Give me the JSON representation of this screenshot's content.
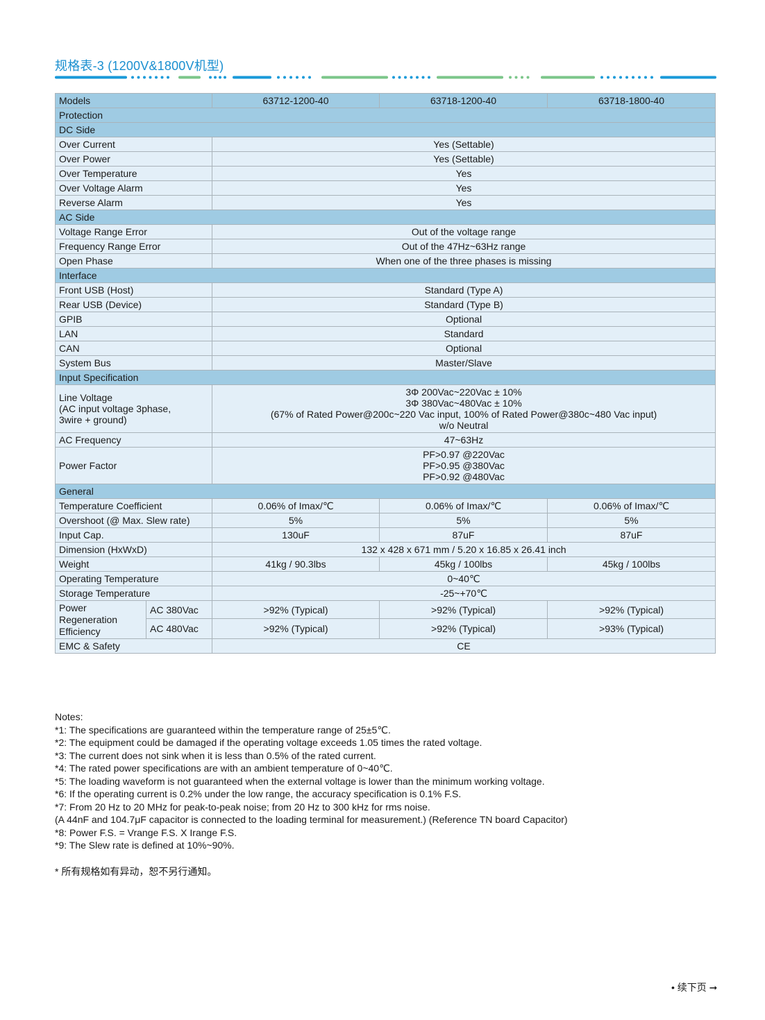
{
  "title": "规格表-3 (1200V&1800V机型)",
  "colors": {
    "accent_blue": "#1a9ad9",
    "accent_green": "#7cc68a",
    "section_bg": "#9fcbe3",
    "row_bg": "#e3eff8"
  },
  "models": {
    "label": "Models",
    "values": [
      "63712-1200-40",
      "63718-1200-40",
      "63718-1800-40"
    ]
  },
  "rows": [
    {
      "type": "section",
      "label": "Protection"
    },
    {
      "type": "section",
      "label": "DC Side"
    },
    {
      "type": "span",
      "label": "Over Current",
      "value": [
        "Yes (Settable)"
      ]
    },
    {
      "type": "span",
      "label": "Over Power",
      "value": [
        "Yes (Settable)"
      ]
    },
    {
      "type": "span",
      "label": "Over Temperature",
      "value": [
        "Yes"
      ]
    },
    {
      "type": "span",
      "label": "Over Voltage Alarm",
      "value": [
        "Yes"
      ]
    },
    {
      "type": "span",
      "label": "Reverse Alarm",
      "value": [
        "Yes"
      ]
    },
    {
      "type": "section",
      "label": "AC Side"
    },
    {
      "type": "span",
      "label": "Voltage Range Error",
      "value": [
        "Out of the voltage range"
      ]
    },
    {
      "type": "span",
      "label": "Frequency Range Error",
      "value": [
        "Out of the 47Hz~63Hz range"
      ]
    },
    {
      "type": "span",
      "label": "Open Phase",
      "value": [
        "When one of the three phases is missing"
      ]
    },
    {
      "type": "section",
      "label": "Interface"
    },
    {
      "type": "span",
      "label": "Front USB (Host)",
      "value": [
        "Standard (Type A)"
      ]
    },
    {
      "type": "span",
      "label": "Rear USB (Device)",
      "value": [
        "Standard (Type B)"
      ]
    },
    {
      "type": "span",
      "label": "GPIB",
      "value": [
        "Optional"
      ]
    },
    {
      "type": "span",
      "label": "LAN",
      "value": [
        "Standard"
      ]
    },
    {
      "type": "span",
      "label": "CAN",
      "value": [
        "Optional"
      ]
    },
    {
      "type": "span",
      "label": "System Bus",
      "value": [
        "Master/Slave"
      ]
    },
    {
      "type": "section",
      "label": "Input Specification"
    },
    {
      "type": "span",
      "label": "Line Voltage\n(AC input voltage 3phase,\n3wire + ground)",
      "value": [
        "3Φ 200Vac~220Vac ± 10%",
        "3Φ 380Vac~480Vac ± 10%",
        "(67% of Rated Power@200c~220 Vac input, 100% of Rated Power@380c~480 Vac input)",
        "w/o Neutral"
      ]
    },
    {
      "type": "span",
      "label": "AC Frequency",
      "value": [
        "47~63Hz"
      ]
    },
    {
      "type": "span",
      "label": "Power Factor",
      "value": [
        "PF>0.97 @220Vac",
        "PF>0.95 @380Vac",
        "PF>0.92 @480Vac"
      ]
    },
    {
      "type": "section",
      "label": "General"
    },
    {
      "type": "three",
      "label": "Temperature Coefficient",
      "values": [
        "0.06% of Imax/℃",
        "0.06% of Imax/℃",
        "0.06% of Imax/℃"
      ]
    },
    {
      "type": "three",
      "label": "Overshoot (@ Max. Slew rate)",
      "values": [
        "5%",
        "5%",
        "5%"
      ]
    },
    {
      "type": "three",
      "label": "Input Cap.",
      "values": [
        "130uF",
        "87uF",
        "87uF"
      ]
    },
    {
      "type": "span",
      "label": "Dimension (HxWxD)",
      "value": [
        "132 x 428 x 671 mm / 5.20 x 16.85 x 26.41 inch"
      ]
    },
    {
      "type": "three",
      "label": "Weight",
      "values": [
        "41kg / 90.3lbs",
        "45kg / 100lbs",
        "45kg / 100lbs"
      ]
    },
    {
      "type": "span",
      "label": "Operating Temperature",
      "value": [
        "0~40℃"
      ]
    },
    {
      "type": "span",
      "label": "Storage Temperature",
      "value": [
        "-25~+70℃"
      ]
    },
    {
      "type": "regen",
      "label": "Power\nRegeneration\nEfficiency",
      "sub": [
        {
          "label": "AC 380Vac",
          "values": [
            ">92% (Typical)",
            ">92% (Typical)",
            ">92% (Typical)"
          ]
        },
        {
          "label": "AC 480Vac",
          "values": [
            ">92% (Typical)",
            ">92% (Typical)",
            ">93% (Typical)"
          ]
        }
      ]
    },
    {
      "type": "span",
      "label": "EMC & Safety",
      "value": [
        "CE"
      ]
    }
  ],
  "notes": [
    "Notes:",
    "*1: The specifications are guaranteed within the temperature range of 25±5℃.",
    "*2: The equipment could be damaged if the operating voltage exceeds 1.05 times the rated voltage.",
    "*3: The current does not sink when it is less than 0.5% of the rated current.",
    "*4: The rated power specifications are with an ambient temperature of 0~40℃.",
    "*5: The loading waveform is not guaranteed when the external voltage is lower than the minimum working voltage.",
    "*6: If the operating current is 0.2% under the low range, the accuracy specification is 0.1% F.S.",
    "*7: From 20 Hz to 20 MHz for peak-to-peak noise; from 20 Hz to 300 kHz for rms noise.",
    "(A 44nF and 104.7μF capacitor is connected to the loading terminal for measurement.) (Reference TN board Capacitor)",
    "*8: Power F.S. = Vrange F.S. X Irange F.S.",
    "*9: The Slew rate is defined at 10%~90%."
  ],
  "disclaimer": "* 所有规格如有异动，恕不另行通知。",
  "continue_label": "• 续下页 ➞"
}
